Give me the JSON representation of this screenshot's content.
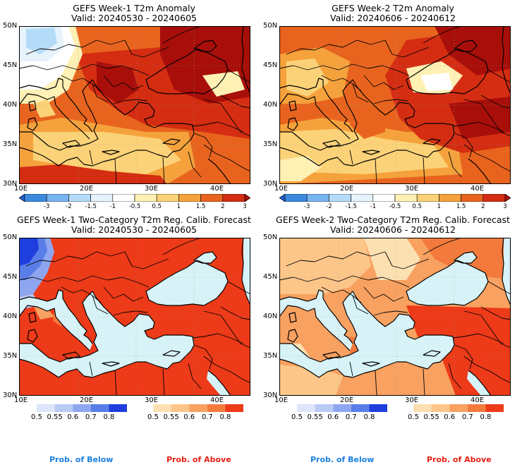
{
  "panels": [
    {
      "title": "GEFS Week-1 T2m Anomaly",
      "valid": "Valid: 20240530 - 20240605"
    },
    {
      "title": "GEFS Week-2 T2m Anomaly",
      "valid": "Valid: 20240606 - 20240612"
    },
    {
      "title": "GEFS Week-1 Two-Category T2m Reg. Calib. Forecast",
      "valid": "Valid: 20240530 - 20240605"
    },
    {
      "title": "GEFS Week-2 Two-Category T2m Reg. Calib. Forecast",
      "valid": "Valid: 20240606 - 20240612"
    }
  ],
  "map": {
    "lat_labels": [
      "50N",
      "45N",
      "40N",
      "35N",
      "30N"
    ],
    "lon_labels": [
      "10E",
      "20E",
      "30E",
      "40E"
    ]
  },
  "anomaly_colorbar": {
    "labels": [
      "-3",
      "-2",
      "-1.5",
      "-1",
      "-0.5",
      "0.5",
      "1",
      "1.5",
      "2",
      "3"
    ],
    "colors": [
      "#1f60c8",
      "#3c8ae0",
      "#78b4f0",
      "#b4dcf8",
      "#e6f2fc",
      "#ffffff",
      "#fff0b4",
      "#fcd278",
      "#f5a23c",
      "#e8641e",
      "#d42d12",
      "#a80f0a"
    ]
  },
  "below_colorbar": {
    "labels": [
      "0.5",
      "0.55",
      "0.6",
      "0.7",
      "0.8"
    ],
    "colors": [
      "#dde6fb",
      "#b9caf6",
      "#8ea6f0",
      "#5a7ee8",
      "#1e3fde"
    ]
  },
  "above_colorbar": {
    "labels": [
      "0.5",
      "0.55",
      "0.6",
      "0.7",
      "0.8"
    ],
    "colors": [
      "#fde0b2",
      "#fcc689",
      "#f8a160",
      "#f37a3c",
      "#ed3a18"
    ]
  },
  "legend": {
    "below": "Prob. of Below",
    "above": "Prob. of Above",
    "below_color": "#1a7fe0",
    "above_color": "#e41e14"
  }
}
